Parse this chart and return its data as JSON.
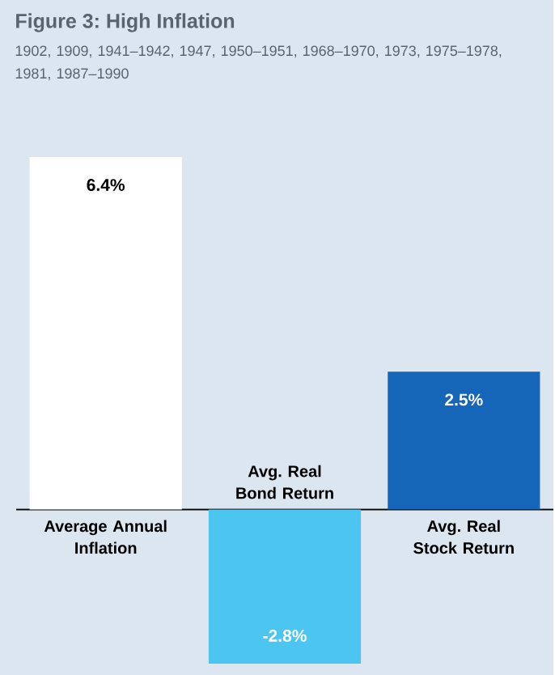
{
  "chart_data": {
    "type": "bar",
    "title": "Figure 3: High Inflation",
    "subtitle": "1902, 1909, 1941–1942, 1947, 1950–1951, 1968–1970, 1973, 1975–1978, 1981, 1987–1990",
    "categories": [
      "Average Annual Inflation",
      "Avg. Real Bond Return",
      "Avg. Real Stock Return"
    ],
    "values": [
      6.4,
      -2.8,
      2.5
    ],
    "colors": [
      "#ffffff",
      "#4cc6f0",
      "#1565b8"
    ],
    "value_labels": [
      "6.4%",
      "-2.8%",
      "2.5%"
    ]
  }
}
